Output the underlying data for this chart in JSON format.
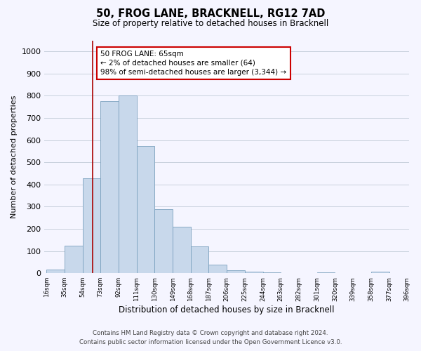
{
  "title": "50, FROG LANE, BRACKNELL, RG12 7AD",
  "subtitle": "Size of property relative to detached houses in Bracknell",
  "xlabel": "Distribution of detached houses by size in Bracknell",
  "ylabel": "Number of detached properties",
  "bin_edges": [
    16,
    35,
    54,
    73,
    92,
    111,
    130,
    149,
    168,
    187,
    206,
    225,
    244,
    263,
    282,
    301,
    320,
    339,
    358,
    377,
    396
  ],
  "bar_heights": [
    18,
    125,
    428,
    775,
    800,
    575,
    290,
    210,
    120,
    40,
    12,
    8,
    5,
    0,
    0,
    5,
    0,
    0,
    8,
    0
  ],
  "bar_color": "#c8d8eb",
  "bar_edge_color": "#7aa0be",
  "ylim": [
    0,
    1050
  ],
  "yticks": [
    0,
    100,
    200,
    300,
    400,
    500,
    600,
    700,
    800,
    900,
    1000
  ],
  "property_line_x": 65,
  "property_line_color": "#aa0000",
  "annotation_title": "50 FROG LANE: 65sqm",
  "annotation_line1": "← 2% of detached houses are smaller (64)",
  "annotation_line2": "98% of semi-detached houses are larger (3,344) →",
  "annotation_box_color": "#cc0000",
  "footer_line1": "Contains HM Land Registry data © Crown copyright and database right 2024.",
  "footer_line2": "Contains public sector information licensed under the Open Government Licence v3.0.",
  "background_color": "#f5f5ff",
  "grid_color": "#c8d0dc"
}
